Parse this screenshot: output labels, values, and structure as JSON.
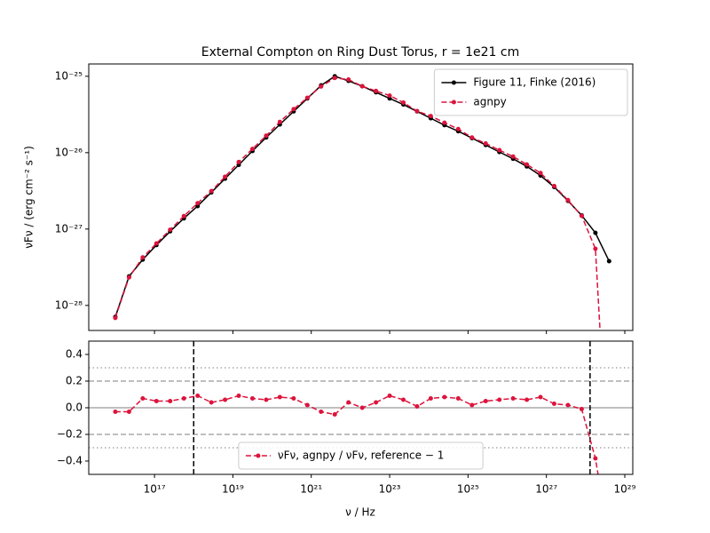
{
  "chart_data": [
    {
      "type": "line",
      "title": "External Compton on Ring Dust Torus, r = 1e21 cm",
      "ylabel": "νFν / (erg cm⁻² s⁻¹)",
      "xscale": "log",
      "yscale": "log",
      "xlim": [
        2100000000000000.0,
        1.6e+29
      ],
      "ylim": [
        4.7e-29,
        1.45e-25
      ],
      "yticks": [
        {
          "value": 1e-25,
          "label": "10⁻²⁵"
        },
        {
          "value": 1e-26,
          "label": "10⁻²⁶"
        },
        {
          "value": 1e-27,
          "label": "10⁻²⁷"
        },
        {
          "value": 1e-28,
          "label": "10⁻²⁸"
        }
      ],
      "legend": "upper right",
      "x": [
        1e+16,
        2.24e+16,
        5.01e+16,
        1.12e+17,
        2.51e+17,
        5.62e+17,
        1.26e+18,
        2.82e+18,
        6.31e+18,
        1.41e+19,
        3.16e+19,
        7.08e+19,
        1.58e+20,
        3.55e+20,
        7.94e+20,
        1.78e+21,
        3.98e+21,
        8.91e+21,
        2e+22,
        4.47e+22,
        1e+23,
        2.24e+23,
        5.01e+23,
        1.12e+24,
        2.51e+24,
        5.62e+24,
        1.26e+25,
        2.82e+25,
        6.31e+25,
        1.41e+26,
        3.16e+26,
        7.08e+26,
        1.58e+27,
        3.55e+27,
        7.94e+27,
        1.78e+28,
        3.98e+28
      ],
      "series": [
        {
          "name": "Figure 11, Finke (2016)",
          "color": "#000000",
          "style": "solid",
          "values": [
            7.08e-29,
            2.4e-28,
            3.98e-28,
            6.17e-28,
            9.33e-28,
            1.38e-27,
            2e-27,
            3.02e-27,
            4.57e-27,
            6.92e-27,
            1.05e-26,
            1.58e-26,
            2.34e-26,
            3.47e-26,
            5.13e-26,
            7.59e-26,
            1e-25,
            8.71e-26,
            7.41e-26,
            6.17e-26,
            5.13e-26,
            4.27e-26,
            3.47e-26,
            2.82e-26,
            2.29e-26,
            1.91e-26,
            1.55e-26,
            1.26e-26,
            1.02e-26,
            8.32e-27,
            6.61e-27,
            5.01e-27,
            3.55e-27,
            2.34e-27,
            1.51e-27,
            8.91e-28,
            3.8e-28
          ]
        },
        {
          "name": "agnpy",
          "color": "#dc143c",
          "style": "dashed",
          "values": [
            6.87e-29,
            2.33e-28,
            4.26e-28,
            6.48e-28,
            9.8e-28,
            1.48e-27,
            2.18e-27,
            3.14e-27,
            4.84e-27,
            7.54e-27,
            1.12e-26,
            1.67e-26,
            2.53e-26,
            3.71e-26,
            5.23e-26,
            7.36e-26,
            9.5e-26,
            9.06e-26,
            7.41e-26,
            6.42e-26,
            5.59e-26,
            4.53e-26,
            3.5e-26,
            3.02e-26,
            2.47e-26,
            2.04e-26,
            1.58e-26,
            1.32e-26,
            1.08e-26,
            8.9e-27,
            7.01e-27,
            5.41e-27,
            3.66e-27,
            2.39e-27,
            1.49e-27,
            5.52e-28,
            3.8e-31
          ]
        }
      ]
    },
    {
      "type": "line",
      "xlabel": "ν / Hz",
      "xscale": "log",
      "yscale": "linear",
      "xlim": [
        2100000000000000.0,
        1.6e+29
      ],
      "ylim": [
        -0.5,
        0.5
      ],
      "xticks": [
        {
          "value": 1e+17,
          "label": "10¹⁷"
        },
        {
          "value": 1e+19,
          "label": "10¹⁹"
        },
        {
          "value": 1e+21,
          "label": "10²¹"
        },
        {
          "value": 1e+23,
          "label": "10²³"
        },
        {
          "value": 1e+25,
          "label": "10²⁵"
        },
        {
          "value": 1e+27,
          "label": "10²⁷"
        },
        {
          "value": 1e+29,
          "label": "10²⁹"
        }
      ],
      "yticks": [
        0.4,
        0.2,
        {
          "value": 0,
          "label": "0.0"
        },
        {
          "value": -0.2,
          "label": "−0.2"
        },
        {
          "value": -0.4,
          "label": "−0.4"
        }
      ],
      "hlines": [
        {
          "y": 0,
          "style": "solid"
        },
        {
          "y": 0.2,
          "style": "dashed"
        },
        {
          "y": -0.2,
          "style": "dashed"
        },
        {
          "y": 0.3,
          "style": "dotted"
        },
        {
          "y": -0.3,
          "style": "dotted"
        }
      ],
      "vlines": [
        1e+18,
        1.3e+28
      ],
      "legend": "lower center",
      "x": [
        1e+16,
        2.24e+16,
        5.01e+16,
        1.12e+17,
        2.51e+17,
        5.62e+17,
        1.26e+18,
        2.82e+18,
        6.31e+18,
        1.41e+19,
        3.16e+19,
        7.08e+19,
        1.58e+20,
        3.55e+20,
        7.94e+20,
        1.78e+21,
        3.98e+21,
        8.91e+21,
        2e+22,
        4.47e+22,
        1e+23,
        2.24e+23,
        5.01e+23,
        1.12e+24,
        2.51e+24,
        5.62e+24,
        1.26e+25,
        2.82e+25,
        6.31e+25,
        1.41e+26,
        3.16e+26,
        7.08e+26,
        1.58e+27,
        3.55e+27,
        7.94e+27,
        1.78e+28,
        3.98e+28
      ],
      "series": [
        {
          "name": "νFν, agnpy / νFν, reference − 1",
          "color": "#dc143c",
          "style": "dashed",
          "values": [
            -0.03,
            -0.03,
            0.07,
            0.05,
            0.05,
            0.07,
            0.09,
            0.04,
            0.06,
            0.09,
            0.07,
            0.06,
            0.08,
            0.07,
            0.02,
            -0.03,
            -0.05,
            0.04,
            0.0,
            0.04,
            0.09,
            0.06,
            0.01,
            0.07,
            0.08,
            0.07,
            0.02,
            0.05,
            0.06,
            0.07,
            0.06,
            0.08,
            0.03,
            0.02,
            -0.01,
            -0.38,
            -0.999
          ]
        }
      ]
    }
  ]
}
